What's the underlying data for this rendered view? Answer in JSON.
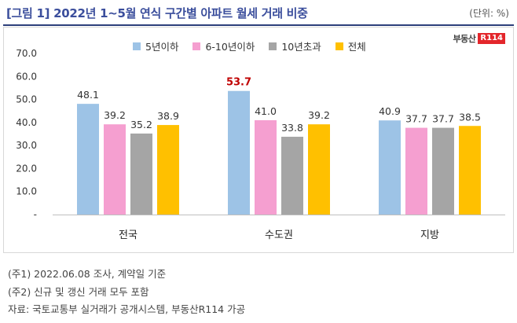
{
  "header": {
    "title": "[그림 1] 2022년 1~5월 연식 구간별 아파트 월세 거래 비중",
    "unit": "(단위: %)"
  },
  "logo": {
    "text": "부동산",
    "badge": "R114"
  },
  "colors": {
    "series": [
      "#9dc3e6",
      "#f59fd0",
      "#a5a5a5",
      "#ffc000"
    ],
    "highlight": "#c00000",
    "title": "#3b4e9c"
  },
  "chart_data": {
    "type": "bar",
    "categories": [
      "전국",
      "수도권",
      "지방"
    ],
    "series": [
      {
        "name": "5년이하",
        "values": [
          48.1,
          53.7,
          40.9
        ],
        "labels": [
          "48.1",
          "53.7",
          "40.9"
        ]
      },
      {
        "name": "6-10년이하",
        "values": [
          39.2,
          41.0,
          37.7
        ],
        "labels": [
          "39.2",
          "41.0",
          "37.7"
        ]
      },
      {
        "name": "10년초과",
        "values": [
          35.2,
          33.8,
          37.7
        ],
        "labels": [
          "35.2",
          "33.8",
          "37.7"
        ]
      },
      {
        "name": "전체",
        "values": [
          38.9,
          39.2,
          38.5
        ],
        "labels": [
          "38.9",
          "39.2",
          "38.5"
        ]
      }
    ],
    "highlight": {
      "series": 0,
      "category": 1
    },
    "ylim": [
      0,
      70
    ],
    "yticks": [
      "-",
      "10.0",
      "20.0",
      "30.0",
      "40.0",
      "50.0",
      "60.0",
      "70.0"
    ],
    "title": "",
    "xlabel": "",
    "ylabel": ""
  },
  "notes": [
    "(주1) 2022.06.08 조사, 계약일 기준",
    "(주2) 신규 및 갱신 거래 모두 포함",
    "자료: 국토교통부 실거래가 공개시스템, 부동산R114 가공"
  ]
}
